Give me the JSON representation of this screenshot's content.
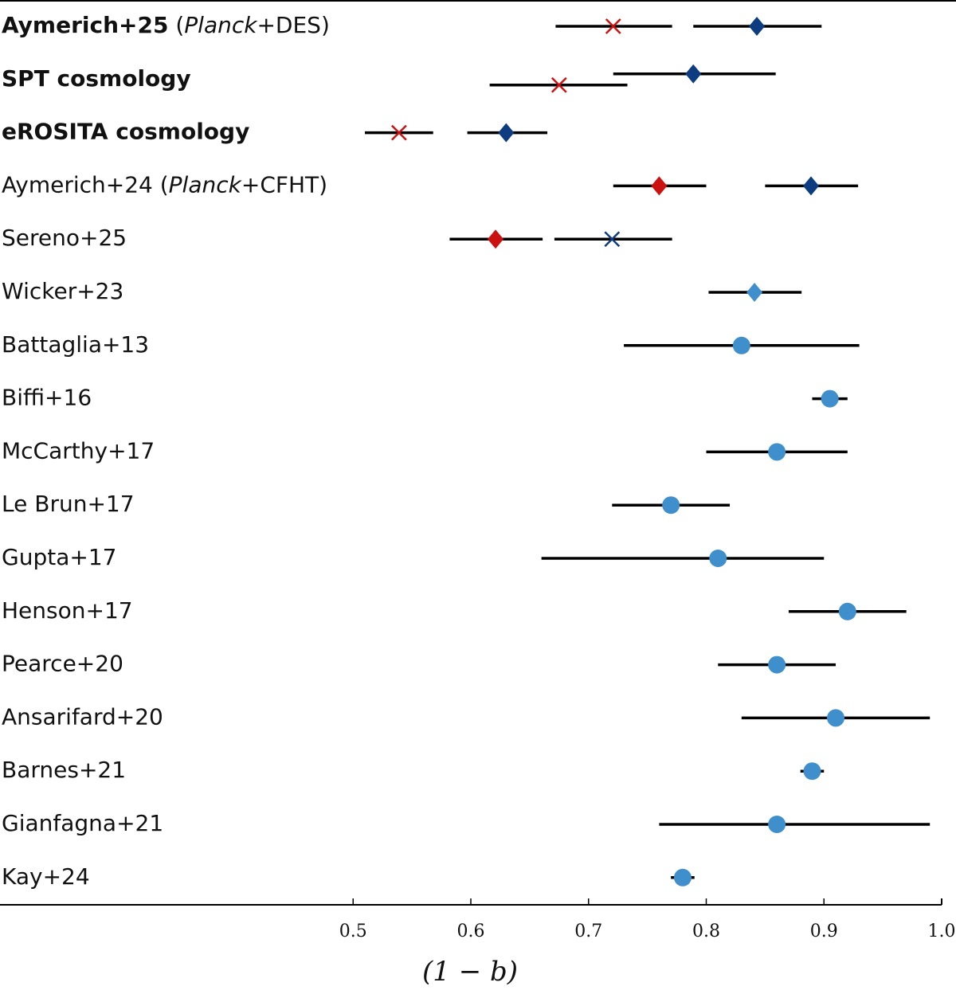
{
  "chart_data": {
    "type": "forest",
    "xlabel": "(1 − b)",
    "xlim": [
      0.2,
      1.0
    ],
    "xticks": [
      0.5,
      0.6,
      0.7,
      0.8,
      0.9,
      {
        "value": 1.0,
        "label": "1.0"
      }
    ],
    "rows": [
      {
        "label": [
          {
            "text": "Aymerich+25",
            "style": "bold"
          },
          {
            "text": " (",
            "style": "normal"
          },
          {
            "text": "Planck",
            "style": "italic"
          },
          {
            "text": "+DES)",
            "style": "normal"
          }
        ],
        "points": [
          {
            "value": 0.721,
            "low": 0.672,
            "high": 0.771,
            "marker": "x",
            "color": "#cc1111"
          },
          {
            "value": 0.843,
            "low": 0.789,
            "high": 0.898,
            "marker": "diamond",
            "color": "#0d3c80"
          }
        ]
      },
      {
        "label": [
          {
            "text": "SPT cosmology",
            "style": "bold"
          }
        ],
        "points": [
          {
            "value": 0.789,
            "low": 0.721,
            "high": 0.859,
            "marker": "diamond",
            "color": "#0d3c80"
          },
          {
            "value": 0.675,
            "low": 0.616,
            "high": 0.733,
            "marker": "x",
            "color": "#cc1111"
          }
        ]
      },
      {
        "label": [
          {
            "text": "eROSITA cosmology",
            "style": "bold"
          }
        ],
        "points": [
          {
            "value": 0.539,
            "low": 0.51,
            "high": 0.568,
            "marker": "x",
            "color": "#cc1111"
          },
          {
            "value": 0.63,
            "low": 0.597,
            "high": 0.665,
            "marker": "diamond",
            "color": "#0d3c80"
          }
        ]
      },
      {
        "label": [
          {
            "text": "Aymerich+24 (",
            "style": "normal"
          },
          {
            "text": "Planck",
            "style": "italic"
          },
          {
            "text": "+CFHT)",
            "style": "normal"
          }
        ],
        "points": [
          {
            "value": 0.76,
            "low": 0.721,
            "high": 0.8,
            "marker": "diamond",
            "color": "#cc1111"
          },
          {
            "value": 0.889,
            "low": 0.85,
            "high": 0.929,
            "marker": "diamond",
            "color": "#0d3c80"
          }
        ]
      },
      {
        "label": [
          {
            "text": "Sereno+25",
            "style": "normal"
          }
        ],
        "points": [
          {
            "value": 0.621,
            "low": 0.582,
            "high": 0.661,
            "marker": "diamond",
            "color": "#cc1111"
          },
          {
            "value": 0.72,
            "low": 0.671,
            "high": 0.771,
            "marker": "x",
            "color": "#0d3c80"
          }
        ]
      },
      {
        "label": [
          {
            "text": "Wicker+23",
            "style": "normal"
          }
        ],
        "points": [
          {
            "value": 0.841,
            "low": 0.802,
            "high": 0.881,
            "marker": "diamond",
            "color": "#3f8fcc"
          }
        ]
      },
      {
        "label": [
          {
            "text": "Battaglia+13",
            "style": "normal"
          }
        ],
        "points": [
          {
            "value": 0.83,
            "low": 0.73,
            "high": 0.93,
            "marker": "circle",
            "color": "#3f8fcc"
          }
        ]
      },
      {
        "label": [
          {
            "text": "Biffi+16",
            "style": "normal"
          }
        ],
        "points": [
          {
            "value": 0.905,
            "low": 0.89,
            "high": 0.92,
            "marker": "circle",
            "color": "#3f8fcc"
          }
        ]
      },
      {
        "label": [
          {
            "text": "McCarthy+17",
            "style": "normal"
          }
        ],
        "points": [
          {
            "value": 0.86,
            "low": 0.8,
            "high": 0.92,
            "marker": "circle",
            "color": "#3f8fcc"
          }
        ]
      },
      {
        "label": [
          {
            "text": "Le Brun+17",
            "style": "normal"
          }
        ],
        "points": [
          {
            "value": 0.77,
            "low": 0.72,
            "high": 0.82,
            "marker": "circle",
            "color": "#3f8fcc"
          }
        ]
      },
      {
        "label": [
          {
            "text": "Gupta+17",
            "style": "normal"
          }
        ],
        "points": [
          {
            "value": 0.81,
            "low": 0.66,
            "high": 0.9,
            "marker": "circle",
            "color": "#3f8fcc"
          }
        ]
      },
      {
        "label": [
          {
            "text": "Henson+17",
            "style": "normal"
          }
        ],
        "points": [
          {
            "value": 0.92,
            "low": 0.87,
            "high": 0.97,
            "marker": "circle",
            "color": "#3f8fcc"
          }
        ]
      },
      {
        "label": [
          {
            "text": "Pearce+20",
            "style": "normal"
          }
        ],
        "points": [
          {
            "value": 0.86,
            "low": 0.81,
            "high": 0.91,
            "marker": "circle",
            "color": "#3f8fcc"
          }
        ]
      },
      {
        "label": [
          {
            "text": "Ansarifard+20",
            "style": "normal"
          }
        ],
        "points": [
          {
            "value": 0.91,
            "low": 0.83,
            "high": 0.99,
            "marker": "circle",
            "color": "#3f8fcc"
          }
        ]
      },
      {
        "label": [
          {
            "text": "Barnes+21",
            "style": "normal"
          }
        ],
        "points": [
          {
            "value": 0.89,
            "low": 0.88,
            "high": 0.9,
            "marker": "circle",
            "color": "#3f8fcc"
          }
        ]
      },
      {
        "label": [
          {
            "text": "Gianfagna+21",
            "style": "normal"
          }
        ],
        "points": [
          {
            "value": 0.86,
            "low": 0.76,
            "high": 0.99,
            "marker": "circle",
            "color": "#3f8fcc"
          }
        ]
      },
      {
        "label": [
          {
            "text": "Kay+24",
            "style": "normal"
          }
        ],
        "points": [
          {
            "value": 0.78,
            "low": 0.77,
            "high": 0.79,
            "marker": "circle",
            "color": "#3f8fcc"
          }
        ]
      }
    ]
  }
}
